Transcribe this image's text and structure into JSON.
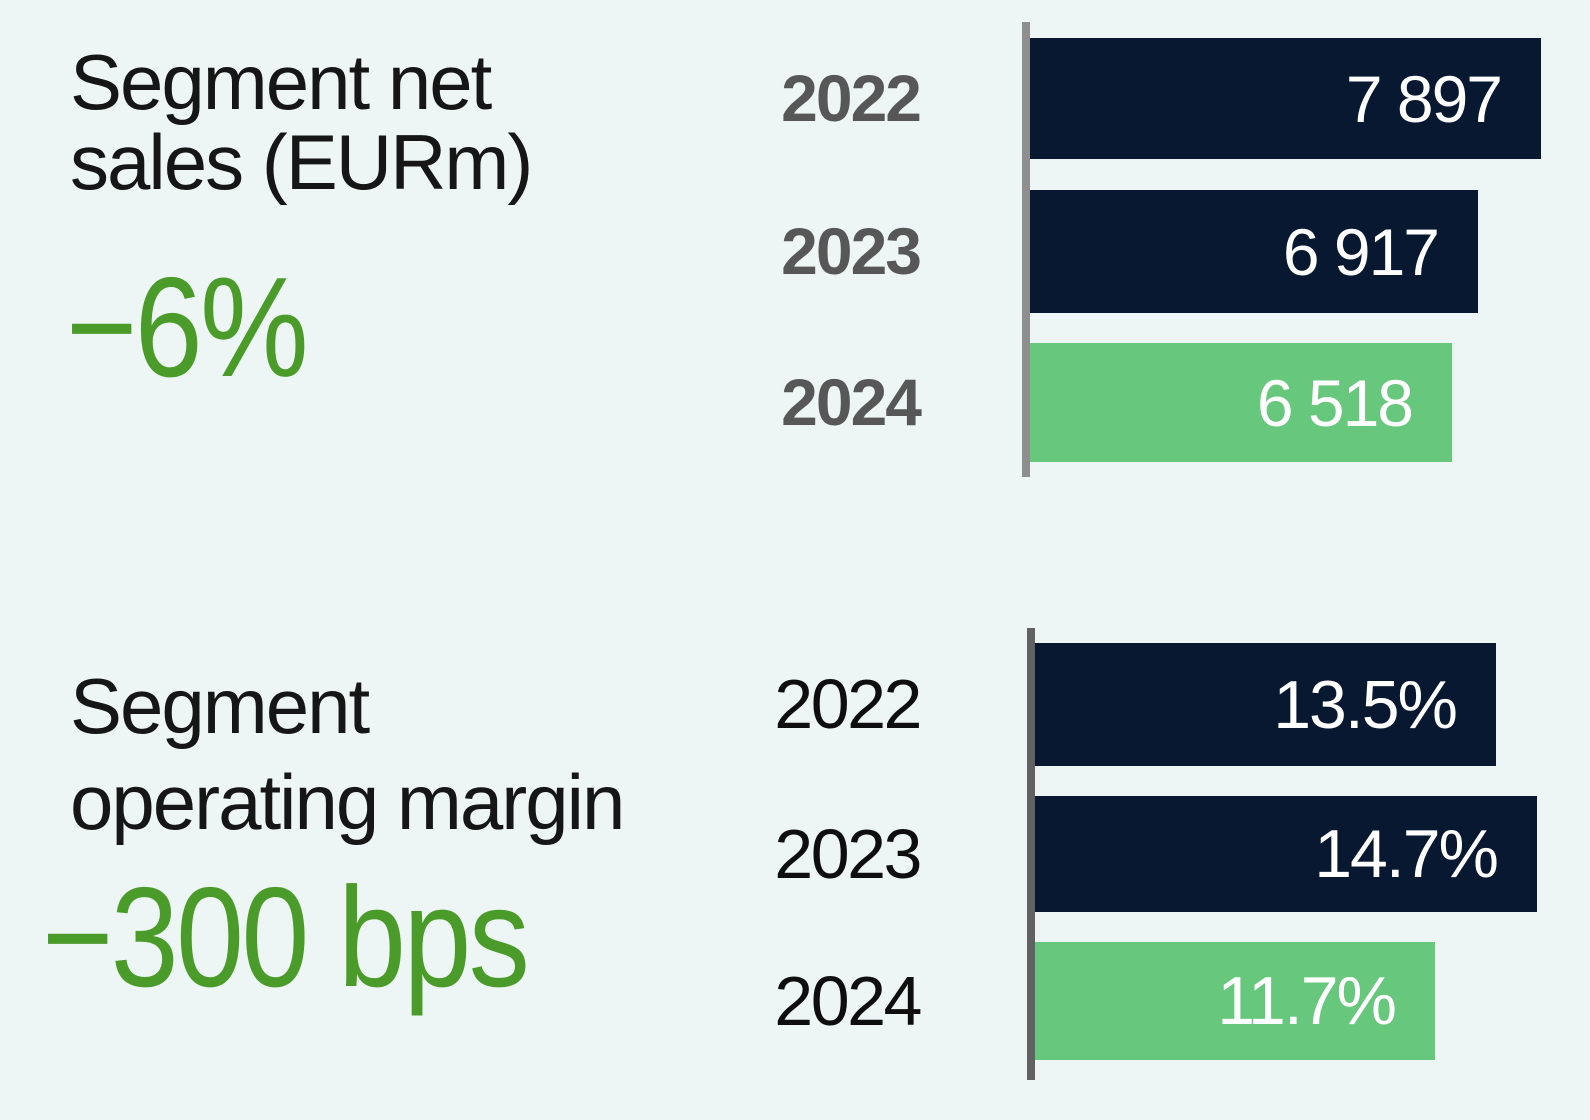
{
  "background": "#EDF6F4",
  "palette": {
    "navy_bar": "#081830",
    "green_bar": "#66C77D",
    "green_text": "#4B9B2A",
    "gray_year_label": "#575757",
    "black_year_label": "#0E0E0E",
    "white_value_label": "#FFFFFF",
    "axis_gray_top": "#8E8E8E",
    "axis_gray_bottom": "#616161"
  },
  "kpi_blocks": [
    {
      "title_lines": [
        "Segment net",
        "sales (EURm)"
      ],
      "change": "−6%",
      "change_color": "#4B9B2A"
    },
    {
      "title_lines": [
        "Segment",
        "operating margin"
      ],
      "change": "−300 bps",
      "change_color": "#4B9B2A"
    }
  ],
  "chart_data": [
    {
      "type": "bar",
      "orientation": "horizontal",
      "title": "Segment net sales (EURm)",
      "kpi_annotation": "−6%",
      "categories": [
        "2022",
        "2023",
        "2024"
      ],
      "values": [
        7897,
        6917,
        6518
      ],
      "value_labels": [
        "7 897",
        "6 917",
        "6 518"
      ],
      "bar_colors": [
        "#081830",
        "#081830",
        "#66C77D"
      ],
      "axis_color": "#8E8E8E",
      "xlim": [
        0,
        7897
      ],
      "grid": false,
      "legend": false
    },
    {
      "type": "bar",
      "orientation": "horizontal",
      "title": "Segment operating margin",
      "kpi_annotation": "−300 bps",
      "categories": [
        "2022",
        "2023",
        "2024"
      ],
      "values": [
        13.5,
        14.7,
        11.7
      ],
      "value_labels": [
        "13.5%",
        "14.7%",
        "11.7%"
      ],
      "bar_colors": [
        "#081830",
        "#081830",
        "#66C77D"
      ],
      "axis_color": "#616161",
      "xlim": [
        0,
        14.7
      ],
      "grid": false,
      "legend": false
    }
  ]
}
